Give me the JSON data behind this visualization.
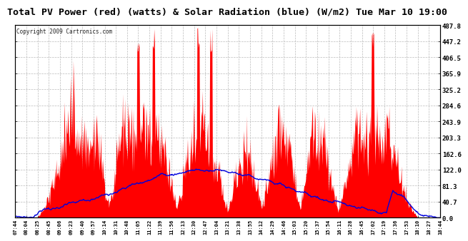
{
  "title": "Total PV Power (red) (watts) & Solar Radiation (blue) (W/m2) Tue Mar 10 19:00",
  "copyright": "Copyright 2009 Cartronics.com",
  "y_ticks": [
    0.0,
    40.7,
    81.3,
    122.0,
    162.6,
    203.3,
    243.9,
    284.6,
    325.2,
    365.9,
    406.5,
    447.2,
    487.8
  ],
  "x_labels": [
    "07:44",
    "08:04",
    "08:25",
    "08:45",
    "09:06",
    "09:23",
    "09:40",
    "09:57",
    "10:14",
    "10:31",
    "10:48",
    "11:05",
    "11:22",
    "11:39",
    "11:56",
    "12:13",
    "12:30",
    "12:47",
    "13:04",
    "13:21",
    "13:38",
    "13:55",
    "14:12",
    "14:29",
    "14:46",
    "15:03",
    "15:20",
    "15:37",
    "15:54",
    "16:11",
    "16:28",
    "16:45",
    "17:02",
    "17:19",
    "17:36",
    "17:53",
    "18:10",
    "18:27",
    "18:44"
  ],
  "bg_color": "#ffffff",
  "grid_color": "#bbbbbb",
  "red_color": "#ff0000",
  "blue_color": "#0000dd",
  "ymax": 487.8,
  "title_fontsize": 9.5,
  "copy_fontsize": 5.5,
  "tick_fontsize": 6.5,
  "xtick_fontsize": 5.0
}
